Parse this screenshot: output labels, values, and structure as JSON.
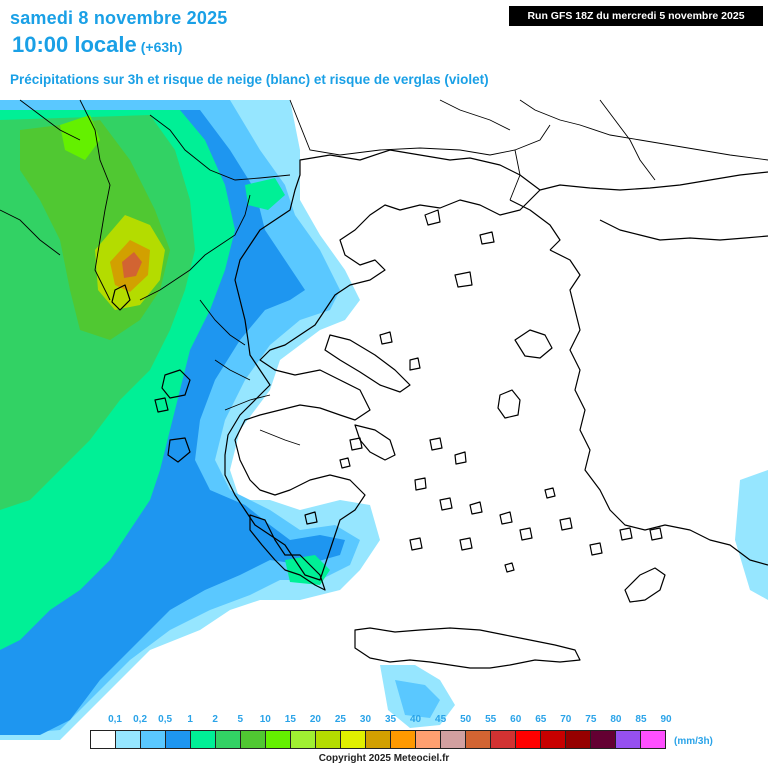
{
  "header": {
    "date_line": "samedi 8 novembre 2025",
    "time_line": "10:00 locale",
    "offset": "(+63h)",
    "subtitle": "Précipitations sur 3h et risque de neige (blanc) et risque de verglas (violet)",
    "run_info": "Run GFS 18Z du mercredi 5 novembre 2025"
  },
  "legend": {
    "labels": [
      "0,1",
      "0,2",
      "0,5",
      "1",
      "2",
      "5",
      "10",
      "15",
      "20",
      "25",
      "30",
      "35",
      "40",
      "45",
      "50",
      "55",
      "60",
      "65",
      "70",
      "75",
      "80",
      "85",
      "90"
    ],
    "colors": [
      "#ffffff",
      "#96e6ff",
      "#5ac8ff",
      "#1e96f0",
      "#00f096",
      "#32d264",
      "#50c832",
      "#64f000",
      "#a0f032",
      "#b4dc00",
      "#e1f000",
      "#d2a000",
      "#ff9900",
      "#ffa070",
      "#d2a0a0",
      "#d26432",
      "#d23232",
      "#ff0000",
      "#c80000",
      "#960000",
      "#640032",
      "#9650f0",
      "#ff50ff"
    ],
    "units": "(mm/3h)"
  },
  "map": {
    "region": "Greece / Aegean Sea",
    "colors": {
      "light_blue": "#96e6ff",
      "blue": "#5ac8ff",
      "dark_blue": "#1e96f0",
      "teal_green": "#00f096",
      "green": "#32d264",
      "medium_green": "#50c832",
      "yellow_green": "#b4dc00",
      "orange": "#d2a000",
      "brown": "#d26432"
    }
  },
  "copyright": "Copyright 2025 Meteociel.fr"
}
